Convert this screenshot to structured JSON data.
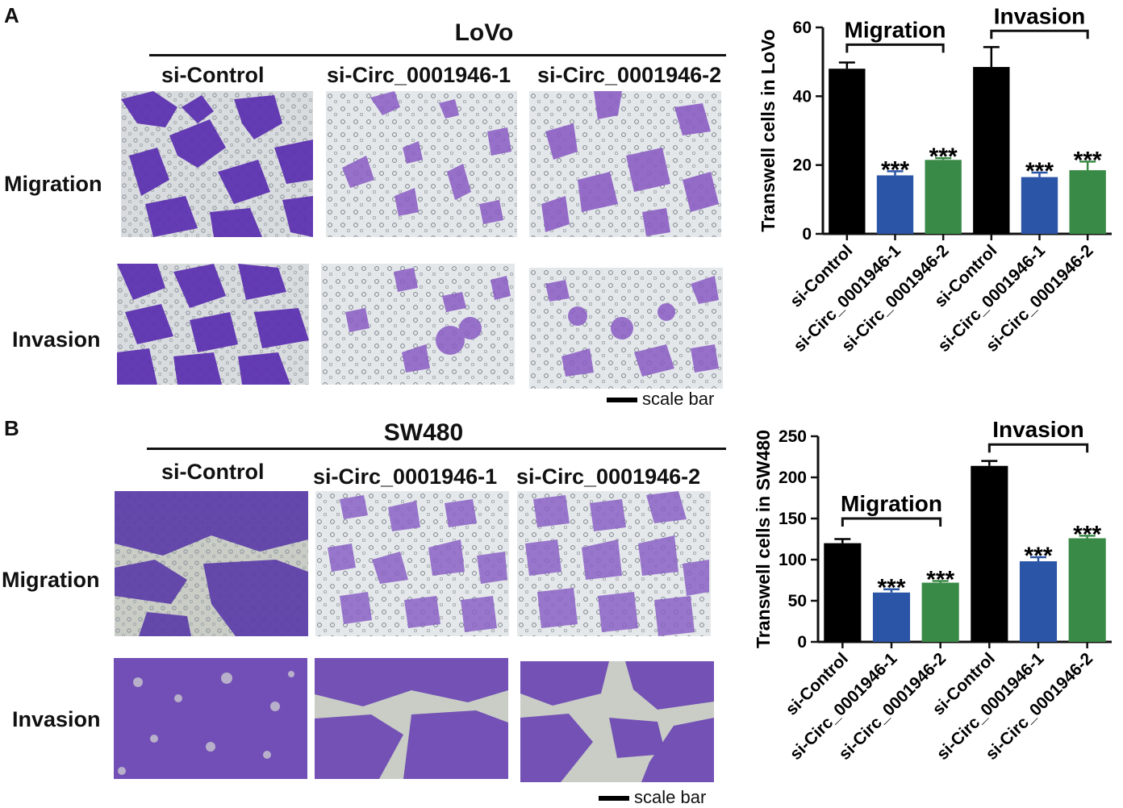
{
  "panel_a": {
    "letter": "A",
    "cell_line": "LoVo",
    "columns": [
      "si-Control",
      "si-Circ_0001946-1",
      "si-Circ_0001946-2"
    ],
    "rows": [
      "Migration",
      "Invasion"
    ],
    "scale_label": "scale bar"
  },
  "panel_b": {
    "letter": "B",
    "cell_line": "SW480",
    "columns": [
      "si-Control",
      "si-Circ_0001946-1",
      "si-Circ_0001946-2"
    ],
    "rows": [
      "Migration",
      "Invasion"
    ],
    "scale_label": "scale bar"
  },
  "colors": {
    "control": "#000000",
    "si1": "#2b55a6",
    "si2": "#3a8a47",
    "stain": "#6b3fb3",
    "background_light": "#e9ecee"
  },
  "chart_data": [
    {
      "type": "bar",
      "ylabel": "Transwell cells in LoVo",
      "ylim": [
        0,
        60
      ],
      "yticks": [
        0,
        20,
        40,
        60
      ],
      "categories": [
        "si-Control",
        "si-Circ_0001946-1",
        "si-Circ_0001946-2",
        "si-Control",
        "si-Circ_0001946-1",
        "si-Circ_0001946-2"
      ],
      "values": [
        48,
        17,
        21.5,
        48.5,
        16.5,
        18.5
      ],
      "errors": [
        1.8,
        1.2,
        0.5,
        5.8,
        1.3,
        2.5
      ],
      "bar_colors": [
        "#000000",
        "#2b55a6",
        "#3a8a47",
        "#000000",
        "#2b55a6",
        "#3a8a47"
      ],
      "annotations": [
        "",
        "***",
        "***",
        "",
        "***",
        "***"
      ],
      "brackets": [
        {
          "label": "Migration",
          "from": 0,
          "to": 2,
          "y": 55
        },
        {
          "label": "Invasion",
          "from": 3,
          "to": 5,
          "y": 59
        }
      ]
    },
    {
      "type": "bar",
      "ylabel": "Transwell cells in SW480",
      "ylim": [
        0,
        250
      ],
      "yticks": [
        0,
        50,
        100,
        150,
        200,
        250
      ],
      "categories": [
        "si-Control",
        "si-Circ_0001946-1",
        "si-Circ_0001946-2",
        "si-Control",
        "si-Circ_0001946-1",
        "si-Circ_0001946-2"
      ],
      "values": [
        120,
        60,
        72,
        214,
        98,
        126
      ],
      "errors": [
        5,
        4,
        2,
        6,
        5,
        3
      ],
      "bar_colors": [
        "#000000",
        "#2b55a6",
        "#3a8a47",
        "#000000",
        "#2b55a6",
        "#3a8a47"
      ],
      "annotations": [
        "",
        "***",
        "***",
        "",
        "***",
        "***"
      ],
      "brackets": [
        {
          "label": "Migration",
          "from": 0,
          "to": 2,
          "y": 150
        },
        {
          "label": "Invasion",
          "from": 3,
          "to": 5,
          "y": 240
        }
      ]
    }
  ]
}
